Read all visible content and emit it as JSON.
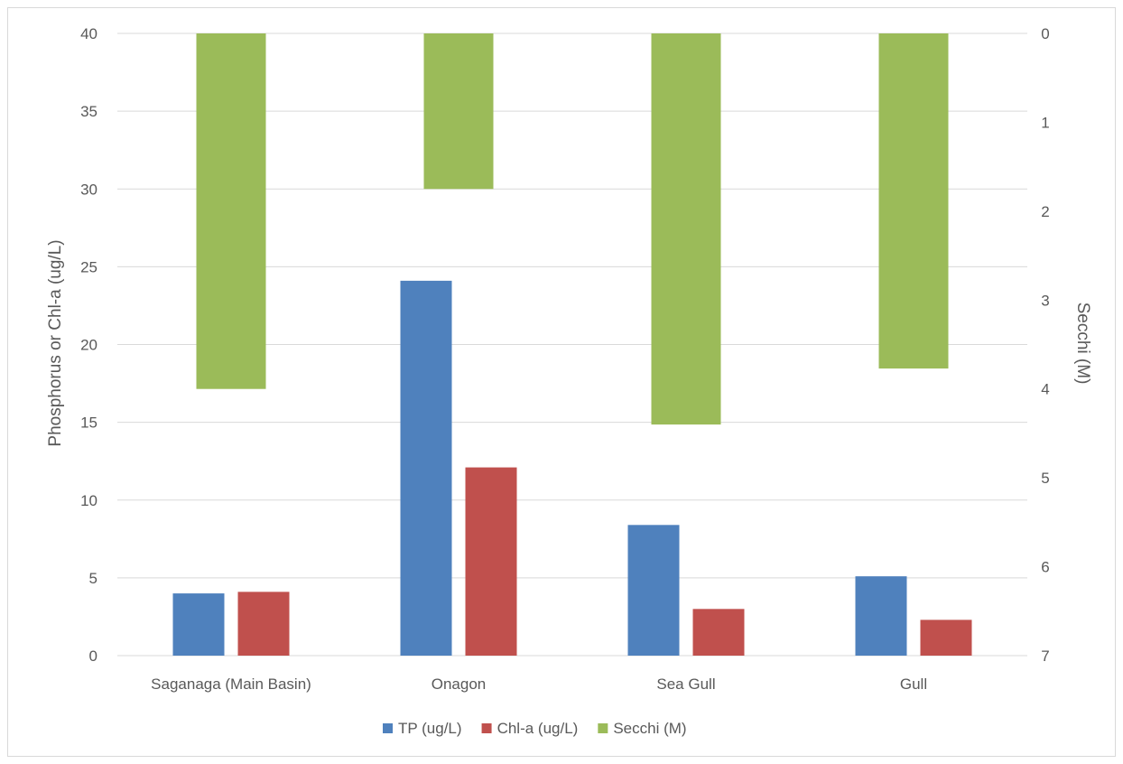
{
  "chart_data": {
    "type": "bar",
    "categories": [
      "Saganaga (Main Basin)",
      "Onagon",
      "Sea Gull",
      "Gull"
    ],
    "series": [
      {
        "name": "TP (ug/L)",
        "axis": "left",
        "values": [
          4.0,
          24.1,
          8.4,
          5.1
        ],
        "color": "#4f81bd"
      },
      {
        "name": "Chl-a (ug/L)",
        "axis": "left",
        "values": [
          4.1,
          12.1,
          3.0,
          2.3
        ],
        "color": "#c0504d"
      },
      {
        "name": "Secchi (M)",
        "axis": "right",
        "values": [
          4.0,
          1.75,
          4.4,
          3.77
        ],
        "color": "#9bbb59"
      }
    ],
    "title": "",
    "xlabel": "",
    "ylabel": "Phosphorus or Chl-a (ug/L)",
    "y2label": "Secchi (M)",
    "ylim": [
      0,
      40
    ],
    "y2lim": [
      0,
      7
    ],
    "y2_reversed": true,
    "yticks": [
      "0",
      "5",
      "10",
      "15",
      "20",
      "25",
      "30",
      "35",
      "40"
    ],
    "y2ticks": [
      "0",
      "1",
      "2",
      "3",
      "4",
      "5",
      "6",
      "7"
    ],
    "grid": true,
    "legend": "bottom"
  }
}
